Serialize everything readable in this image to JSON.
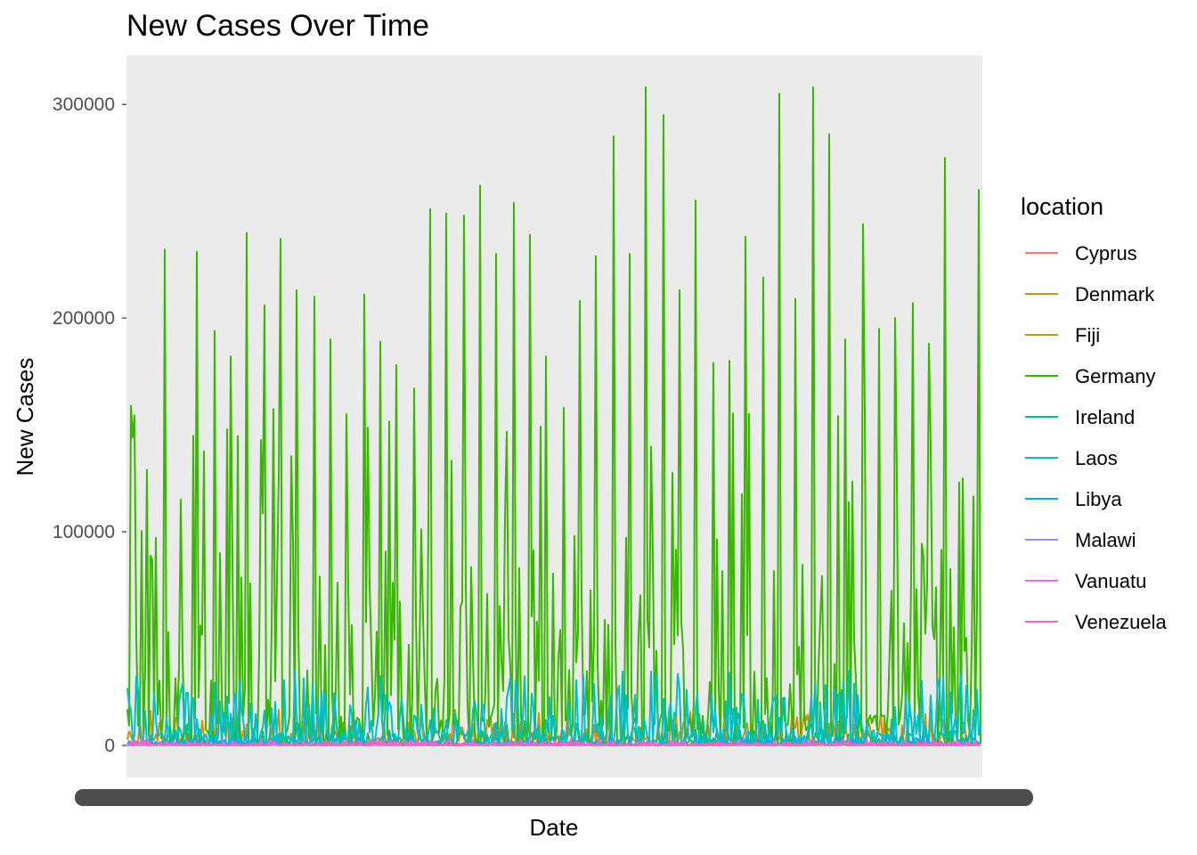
{
  "chart_data": {
    "type": "line",
    "title": "New Cases Over Time",
    "xlabel": "Date",
    "ylabel": "New Cases",
    "ylim": [
      -15000,
      323000
    ],
    "yticks": [
      0,
      100000,
      200000,
      300000
    ],
    "ytick_labels": [
      "0",
      "100000",
      "200000",
      "300000"
    ],
    "grid": false,
    "x_tick_labels_overplotted": true,
    "legend": {
      "title": "location",
      "position": "right"
    },
    "series": [
      {
        "name": "Cyprus",
        "color": "#F8766D",
        "typical_max": 1500
      },
      {
        "name": "Denmark",
        "color": "#D89000",
        "typical_max": 12000
      },
      {
        "name": "Fiji",
        "color": "#A3A500",
        "typical_max": 1000
      },
      {
        "name": "Germany",
        "color": "#39B600",
        "typical_max": 60000,
        "peaks": [
          159000,
          129000,
          232000,
          110000,
          231000,
          194000,
          182000,
          240000,
          206000,
          237000,
          213000,
          210000,
          190000,
          155000,
          211000,
          189000,
          178000,
          167000,
          251000,
          249000,
          248000,
          262000,
          230000,
          254000,
          239000,
          182000,
          158000,
          208000,
          229000,
          285000,
          230000,
          308000,
          295000,
          213000,
          255000,
          179000,
          180000,
          238000,
          219000,
          305000,
          209000,
          308000,
          286000,
          190000,
          244000,
          195000,
          200000,
          207000,
          188000,
          275000,
          125000,
          260000
        ]
      },
      {
        "name": "Ireland",
        "color": "#00BF7D",
        "typical_max": 8000
      },
      {
        "name": "Laos",
        "color": "#00BFC4",
        "typical_max": 25000
      },
      {
        "name": "Libya",
        "color": "#00B0F6",
        "typical_max": 3000
      },
      {
        "name": "Malawi",
        "color": "#9590FF",
        "typical_max": 1000
      },
      {
        "name": "Vanuatu",
        "color": "#E76BF3",
        "typical_max": 500
      },
      {
        "name": "Venezuela",
        "color": "#FF62BC",
        "typical_max": 2000
      }
    ]
  }
}
